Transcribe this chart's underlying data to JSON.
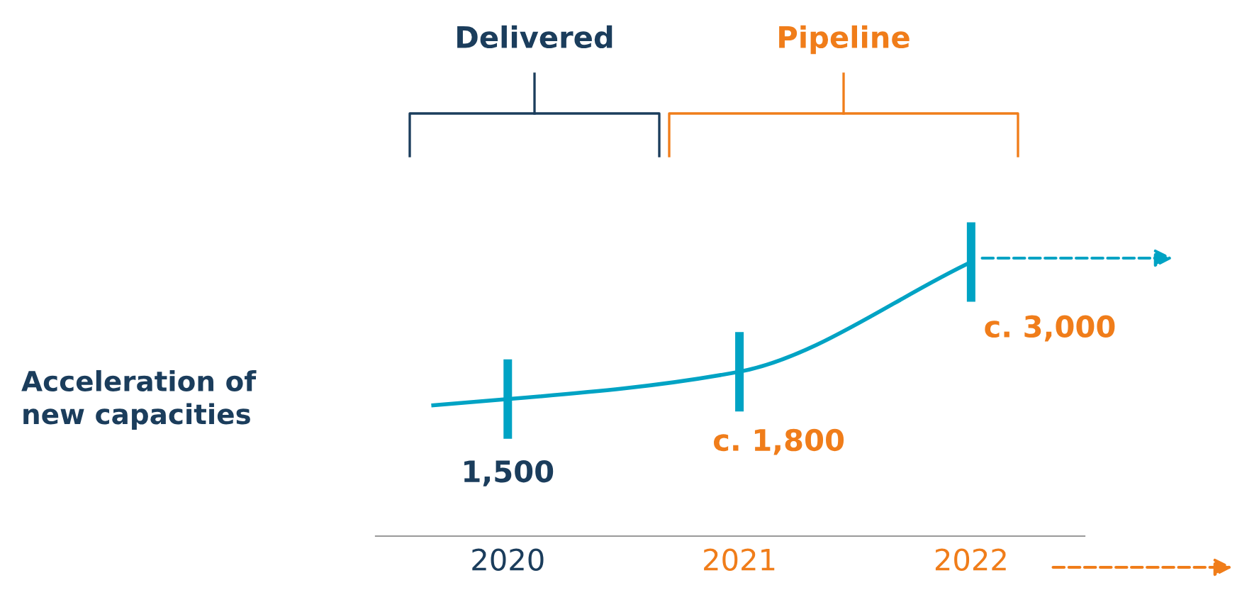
{
  "chart_data": {
    "type": "line",
    "ylabel": "Acceleration of\nnew capacities",
    "categories": [
      "2020",
      "2021",
      "2022"
    ],
    "series": [
      {
        "color": "#00a3c4",
        "values": [
          1500,
          1800,
          3000
        ],
        "value_labels": [
          "1,500",
          "c. 1,800",
          "c. 3,000"
        ]
      }
    ],
    "annotations": [
      "Delivered",
      "Pipeline"
    ],
    "grid": false,
    "legend": false
  }
}
